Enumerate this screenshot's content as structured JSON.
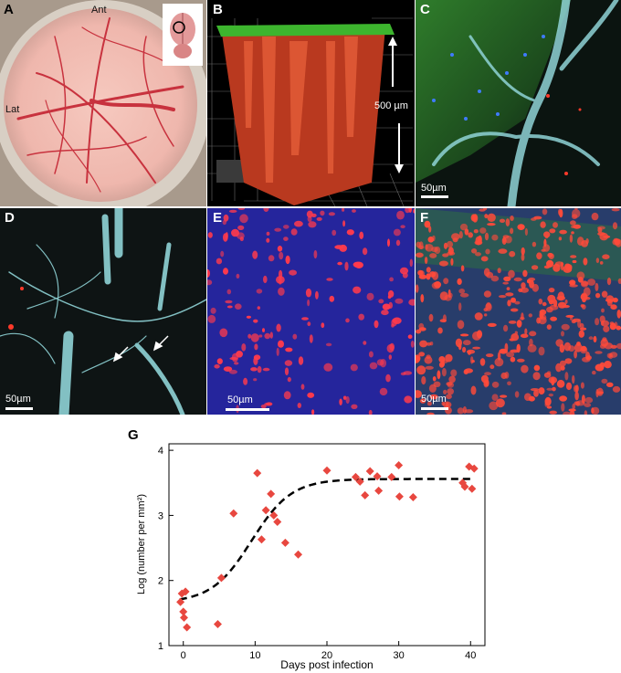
{
  "panels": {
    "a": {
      "label": "A",
      "ant": "Ant",
      "lat": "Lat"
    },
    "b": {
      "label": "B",
      "scale": "500 µm"
    },
    "c": {
      "label": "C",
      "scale": "50µm"
    },
    "d": {
      "label": "D",
      "scale": "50µm"
    },
    "e": {
      "label": "E",
      "scale": "50µm"
    },
    "f": {
      "label": "F",
      "scale": "50µm"
    },
    "g": {
      "label": "G"
    }
  },
  "colors": {
    "points": "#e8473f",
    "fit": "#000000",
    "vessel": "#8fd3d6",
    "cell_red": "#ff3a4c",
    "bg_blue": "#2a2aa8"
  },
  "chart_data": {
    "type": "scatter",
    "xlabel": "Days post infection",
    "ylabel": "Log (number per mm²)",
    "xlim": [
      -2,
      42
    ],
    "ylim": [
      1,
      4.1
    ],
    "xticks": [
      0,
      10,
      20,
      30,
      40
    ],
    "yticks": [
      1,
      2,
      3,
      4
    ],
    "grid": false,
    "points": [
      [
        -0.4,
        1.67
      ],
      [
        -0.2,
        1.8
      ],
      [
        0.0,
        1.52
      ],
      [
        0.1,
        1.43
      ],
      [
        0.3,
        1.83
      ],
      [
        0.5,
        1.28
      ],
      [
        4.8,
        1.33
      ],
      [
        5.3,
        2.04
      ],
      [
        7.0,
        3.03
      ],
      [
        10.3,
        3.65
      ],
      [
        10.9,
        2.63
      ],
      [
        11.5,
        3.08
      ],
      [
        12.2,
        3.33
      ],
      [
        12.6,
        3.0
      ],
      [
        13.1,
        2.9
      ],
      [
        14.2,
        2.58
      ],
      [
        16.0,
        2.4
      ],
      [
        20.0,
        3.69
      ],
      [
        24.0,
        3.59
      ],
      [
        24.6,
        3.52
      ],
      [
        25.3,
        3.31
      ],
      [
        26.0,
        3.68
      ],
      [
        27.0,
        3.6
      ],
      [
        27.2,
        3.38
      ],
      [
        29.0,
        3.59
      ],
      [
        30.0,
        3.77
      ],
      [
        30.1,
        3.29
      ],
      [
        32.0,
        3.28
      ],
      [
        38.9,
        3.5
      ],
      [
        39.2,
        3.44
      ],
      [
        39.8,
        3.75
      ],
      [
        40.2,
        3.41
      ],
      [
        40.5,
        3.72
      ]
    ],
    "fit": {
      "style": "dashed",
      "model": "logistic",
      "lower": 1.66,
      "upper": 3.56,
      "midpoint": 9.5,
      "rate": 0.36,
      "x_range": [
        -0.5,
        40.5
      ]
    }
  }
}
